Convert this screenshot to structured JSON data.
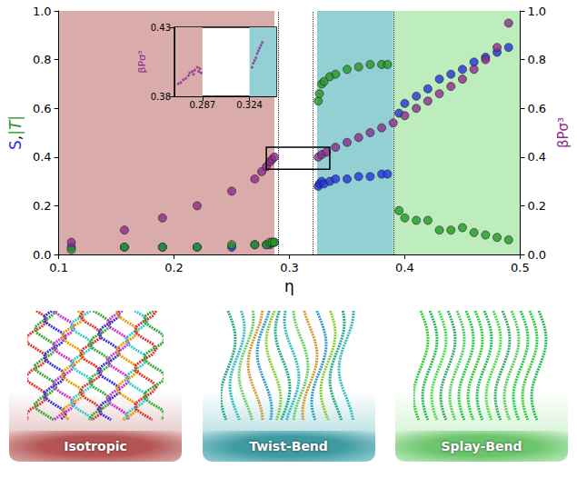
{
  "chart_data": [
    {
      "type": "scatter",
      "xlabel": "η",
      "ylabel_parts": [
        {
          "text": "S",
          "color": "#2233dd"
        },
        {
          "text": ",",
          "color": "#000000"
        },
        {
          "text": "|T|",
          "color": "#229922"
        }
      ],
      "y2label": "βPσ³",
      "y2label_color": "#8e2a8e",
      "xlim": [
        0.1,
        0.5
      ],
      "xticks": [
        0.1,
        0.2,
        0.3,
        0.4,
        0.5
      ],
      "ylim": [
        0,
        1
      ],
      "yticks": [
        {
          "value": 0,
          "label": "0.0"
        },
        0.2,
        0.4,
        0.6,
        0.8,
        {
          "value": 1,
          "label": "1.0"
        }
      ],
      "y2lim": [
        0,
        1
      ],
      "y2ticks": [
        {
          "value": 0,
          "label": "0.0"
        },
        0.2,
        0.4,
        0.6,
        0.8,
        {
          "value": 1,
          "label": "1.0"
        }
      ],
      "phase_regions": [
        {
          "name": "Isotropic",
          "xlim": [
            0.1,
            0.287
          ],
          "color": "#d9abab",
          "panel_color": "#b45454"
        },
        {
          "name": "Twist-Bend",
          "xlim": [
            0.324,
            0.39
          ],
          "color": "#93d0d4",
          "panel_color": "#3f9aa2"
        },
        {
          "name": "Splay-Bend",
          "xlim": [
            0.39,
            0.5
          ],
          "color": "#bdedbd",
          "panel_color": "#6cc46c"
        }
      ],
      "zoom_box": {
        "xlim": [
          0.28,
          0.335
        ],
        "y2lim": [
          0.35,
          0.44
        ]
      },
      "series": [
        {
          "name": "S",
          "color": "#2233dd",
          "marker": "circle",
          "x": [
            0.111,
            0.157,
            0.19,
            0.22,
            0.25,
            0.27,
            0.28,
            0.283,
            0.285,
            0.287,
            0.325,
            0.326,
            0.328,
            0.33,
            0.335,
            0.34,
            0.35,
            0.36,
            0.37,
            0.38,
            0.385,
            0.395,
            0.4,
            0.41,
            0.42,
            0.43,
            0.44,
            0.45,
            0.46,
            0.47,
            0.48,
            0.49
          ],
          "values": [
            0.03,
            0.03,
            0.03,
            0.03,
            0.03,
            0.04,
            0.04,
            0.04,
            0.05,
            0.05,
            0.28,
            0.29,
            0.3,
            0.29,
            0.3,
            0.31,
            0.31,
            0.32,
            0.32,
            0.33,
            0.33,
            0.58,
            0.62,
            0.65,
            0.68,
            0.72,
            0.74,
            0.76,
            0.79,
            0.81,
            0.83,
            0.85
          ]
        },
        {
          "name": "|T|",
          "color": "#229922",
          "marker": "circle",
          "x": [
            0.111,
            0.157,
            0.19,
            0.22,
            0.25,
            0.27,
            0.28,
            0.283,
            0.285,
            0.287,
            0.325,
            0.326,
            0.328,
            0.33,
            0.335,
            0.34,
            0.35,
            0.36,
            0.37,
            0.38,
            0.385,
            0.395,
            0.4,
            0.41,
            0.42,
            0.43,
            0.44,
            0.45,
            0.46,
            0.47,
            0.48,
            0.49
          ],
          "values": [
            0.02,
            0.03,
            0.03,
            0.03,
            0.04,
            0.04,
            0.04,
            0.05,
            0.05,
            0.05,
            0.63,
            0.66,
            0.7,
            0.71,
            0.73,
            0.74,
            0.76,
            0.77,
            0.78,
            0.78,
            0.78,
            0.18,
            0.15,
            0.14,
            0.14,
            0.1,
            0.1,
            0.11,
            0.09,
            0.08,
            0.07,
            0.06
          ]
        },
        {
          "name": "βPσ³",
          "color": "#8e2a8e",
          "marker": "circle",
          "axis": "y2",
          "x": [
            0.111,
            0.157,
            0.19,
            0.22,
            0.25,
            0.27,
            0.276,
            0.28,
            0.283,
            0.285,
            0.287,
            0.325,
            0.328,
            0.332,
            0.34,
            0.35,
            0.36,
            0.37,
            0.38,
            0.39,
            0.4,
            0.41,
            0.42,
            0.43,
            0.44,
            0.45,
            0.46,
            0.47,
            0.48,
            0.49
          ],
          "values": [
            0.05,
            0.1,
            0.15,
            0.2,
            0.26,
            0.31,
            0.34,
            0.36,
            0.38,
            0.39,
            0.4,
            0.4,
            0.41,
            0.42,
            0.44,
            0.46,
            0.48,
            0.5,
            0.52,
            0.54,
            0.57,
            0.6,
            0.63,
            0.66,
            0.69,
            0.72,
            0.76,
            0.8,
            0.85,
            0.95
          ]
        }
      ]
    },
    {
      "type": "scatter",
      "ylabel": "βPσ³",
      "ylabel_color": "#8e2a8e",
      "xlim": [
        0.265,
        0.345
      ],
      "xticks": [
        0.287,
        0.324
      ],
      "ylim": [
        0.38,
        0.43
      ],
      "yticks": [
        0.38,
        0.43
      ],
      "regions": [
        {
          "xlim": [
            0.265,
            0.287
          ],
          "color": "#d9abab"
        },
        {
          "xlim": [
            0.324,
            0.345
          ],
          "color": "#93d0d4"
        }
      ],
      "series": [
        {
          "name": "βPσ³",
          "color": "#8e2a8e",
          "marker": "circle",
          "x": [
            0.268,
            0.27,
            0.272,
            0.274,
            0.276,
            0.277,
            0.279,
            0.28,
            0.281,
            0.283,
            0.284,
            0.285,
            0.286,
            0.326,
            0.327,
            0.328,
            0.329,
            0.33,
            0.331,
            0.332,
            0.333,
            0.334
          ],
          "values": [
            0.389,
            0.39,
            0.392,
            0.393,
            0.395,
            0.397,
            0.398,
            0.396,
            0.399,
            0.401,
            0.398,
            0.4,
            0.397,
            0.401,
            0.404,
            0.406,
            0.408,
            0.411,
            0.413,
            0.415,
            0.417,
            0.419
          ]
        }
      ]
    }
  ]
}
